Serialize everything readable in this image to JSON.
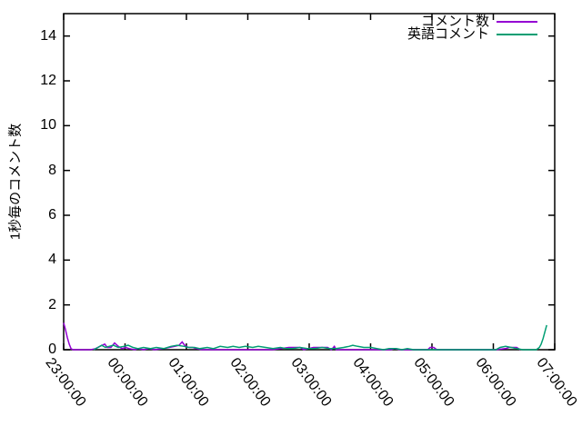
{
  "chart_data": {
    "type": "line",
    "title": "",
    "xlabel": "",
    "ylabel": "1秒毎のコメント数",
    "xlim": [
      0,
      8
    ],
    "ylim": [
      0,
      15
    ],
    "grid": false,
    "legend_position": "top-right-inside",
    "background_color": "#ffffff",
    "axis_color": "#000000",
    "y_ticks": [
      0,
      2,
      4,
      6,
      8,
      10,
      12,
      14
    ],
    "x_ticks": [
      {
        "h": 0,
        "label": "23:00:00"
      },
      {
        "h": 1,
        "label": "00:00:00"
      },
      {
        "h": 2,
        "label": "01:00:00"
      },
      {
        "h": 3,
        "label": "02:00:00"
      },
      {
        "h": 4,
        "label": "03:00:00"
      },
      {
        "h": 5,
        "label": "04:00:00"
      },
      {
        "h": 6,
        "label": "05:00:00"
      },
      {
        "h": 7,
        "label": "06:00:00"
      },
      {
        "h": 8,
        "label": "07:00:00"
      }
    ],
    "x_unit_note": "hours after 23:00:00",
    "series": [
      {
        "name": "コメント数",
        "color": "#9400d3",
        "points": [
          [
            0,
            1.2
          ],
          [
            0.03,
            0.9
          ],
          [
            0.06,
            0.55
          ],
          [
            0.09,
            0.25
          ],
          [
            0.12,
            0.05
          ],
          [
            0.15,
            0
          ],
          [
            0.44,
            0
          ],
          [
            0.52,
            0.05
          ],
          [
            0.59,
            0.15
          ],
          [
            0.67,
            0.25
          ],
          [
            0.71,
            0.1
          ],
          [
            0.77,
            0.1
          ],
          [
            0.83,
            0.3
          ],
          [
            0.89,
            0.15
          ],
          [
            0.95,
            0.05
          ],
          [
            1.01,
            0.1
          ],
          [
            1.07,
            0.05
          ],
          [
            1.16,
            0
          ],
          [
            1.21,
            0.05
          ],
          [
            1.3,
            0
          ],
          [
            1.39,
            0.05
          ],
          [
            1.48,
            0
          ],
          [
            1.63,
            0.05
          ],
          [
            1.72,
            0.1
          ],
          [
            1.81,
            0.15
          ],
          [
            1.88,
            0.2
          ],
          [
            1.93,
            0.35
          ],
          [
            1.97,
            0.2
          ],
          [
            2.03,
            0.1
          ],
          [
            2.1,
            0.1
          ],
          [
            2.16,
            0.05
          ],
          [
            2.25,
            0
          ],
          [
            3.4,
            0
          ],
          [
            3.67,
            0.1
          ],
          [
            3.85,
            0.1
          ],
          [
            3.91,
            0
          ],
          [
            4.07,
            0.1
          ],
          [
            4.3,
            0.1
          ],
          [
            4.36,
            0
          ],
          [
            4.41,
            0.15
          ],
          [
            4.44,
            0
          ],
          [
            5.33,
            0
          ],
          [
            5.39,
            0.05
          ],
          [
            5.48,
            0
          ],
          [
            5.93,
            0
          ],
          [
            5.97,
            0.1
          ],
          [
            6.03,
            0.1
          ],
          [
            6.08,
            0
          ],
          [
            7.04,
            0
          ],
          [
            7.2,
            0.05
          ],
          [
            7.26,
            0.1
          ],
          [
            7.38,
            0.1
          ],
          [
            7.44,
            0
          ]
        ]
      },
      {
        "name": "英語コメント",
        "color": "#009e73",
        "points": [
          [
            0.49,
            0
          ],
          [
            0.56,
            0.1
          ],
          [
            0.62,
            0.2
          ],
          [
            0.68,
            0.1
          ],
          [
            0.74,
            0.15
          ],
          [
            0.81,
            0.2
          ],
          [
            0.89,
            0.1
          ],
          [
            0.98,
            0.15
          ],
          [
            1.05,
            0.2
          ],
          [
            1.13,
            0.1
          ],
          [
            1.21,
            0.05
          ],
          [
            1.3,
            0.1
          ],
          [
            1.41,
            0.05
          ],
          [
            1.51,
            0.1
          ],
          [
            1.63,
            0.05
          ],
          [
            1.75,
            0.15
          ],
          [
            1.85,
            0.2
          ],
          [
            1.96,
            0.15
          ],
          [
            2.04,
            0.1
          ],
          [
            2.13,
            0.1
          ],
          [
            2.22,
            0.05
          ],
          [
            2.34,
            0.1
          ],
          [
            2.44,
            0.05
          ],
          [
            2.55,
            0.15
          ],
          [
            2.67,
            0.1
          ],
          [
            2.76,
            0.15
          ],
          [
            2.86,
            0.1
          ],
          [
            2.96,
            0.15
          ],
          [
            3.08,
            0.1
          ],
          [
            3.17,
            0.15
          ],
          [
            3.29,
            0.1
          ],
          [
            3.41,
            0.05
          ],
          [
            3.53,
            0.1
          ],
          [
            3.63,
            0.05
          ],
          [
            3.73,
            0.05
          ],
          [
            3.85,
            0.1
          ],
          [
            3.97,
            0.05
          ],
          [
            4.09,
            0.05
          ],
          [
            4.21,
            0.1
          ],
          [
            4.33,
            0.05
          ],
          [
            4.44,
            0.05
          ],
          [
            4.56,
            0.1
          ],
          [
            4.65,
            0.15
          ],
          [
            4.71,
            0.2
          ],
          [
            4.79,
            0.15
          ],
          [
            4.89,
            0.1
          ],
          [
            5.01,
            0.1
          ],
          [
            5.11,
            0.05
          ],
          [
            5.21,
            0
          ],
          [
            5.3,
            0.05
          ],
          [
            5.42,
            0.05
          ],
          [
            5.51,
            0
          ],
          [
            5.6,
            0.05
          ],
          [
            5.7,
            0
          ],
          [
            7.04,
            0
          ],
          [
            7.11,
            0.1
          ],
          [
            7.2,
            0.15
          ],
          [
            7.29,
            0.1
          ],
          [
            7.38,
            0.05
          ],
          [
            7.48,
            0
          ],
          [
            7.7,
            0
          ],
          [
            7.75,
            0.1
          ],
          [
            7.78,
            0.25
          ],
          [
            7.81,
            0.5
          ],
          [
            7.84,
            0.8
          ],
          [
            7.87,
            1.1
          ]
        ]
      }
    ]
  }
}
